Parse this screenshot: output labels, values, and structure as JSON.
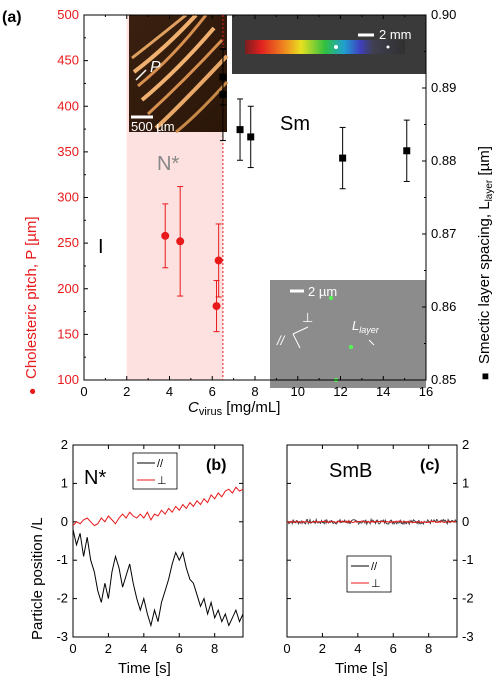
{
  "panel_labels": {
    "a": "(a)",
    "b": "(b)",
    "c": "(c)"
  },
  "colors": {
    "red": "#e8191b",
    "black": "#000000",
    "gray": "#444444",
    "shade": "#fde0e0",
    "phase_gray": "#888888"
  },
  "top": {
    "xlabel_prefix": "C",
    "xlabel_sub": "virus",
    "xlabel_unit": " [mg/mL]",
    "ylabel_left": "Cholesteric pitch, P [µm]",
    "ylabel_left_marker": "●",
    "ylabel_right": "Smectic layer spacing, L",
    "ylabel_right_sub": "layer",
    "ylabel_right_unit": " [µm]",
    "ylabel_right_marker": "■",
    "xticks": [
      "0",
      "2",
      "4",
      "6",
      "8",
      "10",
      "12",
      "14",
      "16"
    ],
    "ylticks": [
      "100",
      "150",
      "200",
      "250",
      "300",
      "350",
      "400",
      "450",
      "500"
    ],
    "yrticks": [
      "0.85",
      "0.86",
      "0.87",
      "0.88",
      "0.89",
      "0.90"
    ],
    "phases": {
      "I": "I",
      "N": "N*",
      "Sm": "Sm"
    },
    "insets": {
      "pitch_scale": "500 µm",
      "pitch_label": "P",
      "rainbow_scale": "2 mm",
      "micro_scale": "2 µm",
      "micro_layer_label": "L",
      "micro_layer_sub": "layer",
      "micro_par": "//",
      "micro_perp": "⊥"
    }
  },
  "bottom": {
    "ylabel": "Particle position /L",
    "xlabel_b": "Time [s]",
    "xlabel_c": "Time [s]",
    "phase_b": "N*",
    "phase_c": "SmB",
    "xticks": [
      "0",
      "2",
      "4",
      "6",
      "8"
    ],
    "yticks": [
      "-3",
      "-2",
      "-1",
      "0",
      "1",
      "2"
    ],
    "legend_par": "//",
    "legend_perp": "⊥"
  },
  "chart_data": [
    {
      "type": "scatter",
      "panel": "a",
      "xlim": [
        0,
        16
      ],
      "ylim_left": [
        100,
        500
      ],
      "ylim_right": [
        0.85,
        0.9
      ],
      "regions": [
        {
          "label": "I",
          "x": [
            0,
            2
          ]
        },
        {
          "label": "N*",
          "x": [
            2,
            6.5
          ],
          "shaded": true
        },
        {
          "label": "Sm",
          "x": [
            6.5,
            16
          ]
        }
      ],
      "transition_line_x": 6.5,
      "series": [
        {
          "name": "P",
          "axis": "left",
          "color": "#e8191b",
          "marker": "circle",
          "x": [
            3.8,
            4.5,
            6.2,
            6.3
          ],
          "y": [
            258,
            252,
            181,
            231
          ],
          "err": [
            35,
            60,
            28,
            40
          ]
        },
        {
          "name": "Llayer",
          "axis": "right",
          "color": "#000000",
          "marker": "square",
          "x": [
            6.5,
            6.5,
            7.3,
            7.8,
            12.1,
            15.1
          ],
          "y": [
            0.8915,
            0.8891,
            0.8843,
            0.8833,
            0.8804,
            0.8814
          ],
          "err": [
            0.0038,
            0.0063,
            0.0042,
            0.0042,
            0.0042,
            0.0042
          ]
        }
      ]
    },
    {
      "type": "line",
      "panel": "b",
      "xlim": [
        0,
        9.6
      ],
      "ylim": [
        -3,
        2
      ],
      "series": [
        {
          "name": "//",
          "color": "#000000",
          "x": [
            0,
            0.2,
            0.4,
            0.6,
            0.8,
            1.0,
            1.2,
            1.4,
            1.6,
            1.8,
            2.0,
            2.2,
            2.4,
            2.6,
            2.8,
            3.0,
            3.2,
            3.4,
            3.6,
            3.8,
            4.0,
            4.2,
            4.4,
            4.6,
            4.8,
            5.0,
            5.2,
            5.4,
            5.6,
            5.8,
            6.0,
            6.2,
            6.4,
            6.6,
            6.8,
            7.0,
            7.2,
            7.4,
            7.6,
            7.8,
            8.0,
            8.2,
            8.4,
            8.6,
            8.8,
            9.0,
            9.2,
            9.4,
            9.6
          ],
          "y": [
            -0.2,
            -0.6,
            -0.3,
            -0.9,
            -0.4,
            -1.0,
            -1.3,
            -1.8,
            -2.1,
            -1.6,
            -2.0,
            -1.3,
            -0.9,
            -1.2,
            -1.7,
            -1.4,
            -1.1,
            -1.6,
            -2.0,
            -2.3,
            -2.0,
            -2.4,
            -2.7,
            -2.3,
            -2.6,
            -2.1,
            -1.8,
            -1.5,
            -1.1,
            -0.8,
            -1.0,
            -0.8,
            -1.2,
            -1.5,
            -1.6,
            -1.9,
            -2.2,
            -2.0,
            -2.4,
            -2.1,
            -2.5,
            -2.3,
            -2.6,
            -2.4,
            -2.7,
            -2.5,
            -2.3,
            -2.6,
            -2.4
          ]
        },
        {
          "name": "⊥",
          "color": "#e8191b",
          "x": [
            0,
            0.2,
            0.4,
            0.6,
            0.8,
            1.0,
            1.2,
            1.4,
            1.6,
            1.8,
            2.0,
            2.2,
            2.4,
            2.6,
            2.8,
            3.0,
            3.2,
            3.4,
            3.6,
            3.8,
            4.0,
            4.2,
            4.4,
            4.6,
            4.8,
            5.0,
            5.2,
            5.4,
            5.6,
            5.8,
            6.0,
            6.2,
            6.4,
            6.6,
            6.8,
            7.0,
            7.2,
            7.4,
            7.6,
            7.8,
            8.0,
            8.2,
            8.4,
            8.6,
            8.8,
            9.0,
            9.2,
            9.4,
            9.6
          ],
          "y": [
            -0.1,
            0.0,
            -0.05,
            0.05,
            0.1,
            0.0,
            -0.1,
            -0.05,
            0.1,
            0.0,
            0.15,
            0.05,
            -0.05,
            0.1,
            0.2,
            0.1,
            0.25,
            0.15,
            0.1,
            0.2,
            0.1,
            0.25,
            0.05,
            0.2,
            0.15,
            0.3,
            0.2,
            0.35,
            0.25,
            0.4,
            0.3,
            0.45,
            0.35,
            0.5,
            0.4,
            0.55,
            0.45,
            0.6,
            0.5,
            0.7,
            0.6,
            0.75,
            0.65,
            0.8,
            0.85,
            0.75,
            0.9,
            0.8,
            0.85
          ]
        }
      ]
    },
    {
      "type": "line",
      "panel": "c",
      "xlim": [
        0,
        9.6
      ],
      "ylim": [
        -3,
        2
      ],
      "series": [
        {
          "name": "//",
          "color": "#444444",
          "constant": 0,
          "noise": 0.06
        },
        {
          "name": "⊥",
          "color": "#e8191b",
          "constant": 0,
          "noise": 0.02
        }
      ]
    }
  ]
}
